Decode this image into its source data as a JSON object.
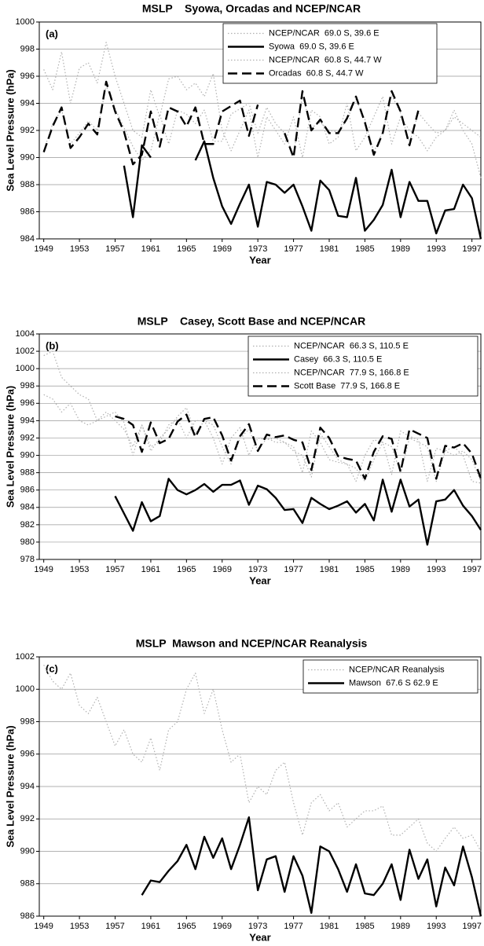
{
  "chart_data": [
    {
      "type": "line",
      "title": "MSLP    Syowa, Orcadas and NCEP/NCAR",
      "panel_label": "(a)",
      "x_label": "Year",
      "y_label": "Sea Level Pressure (hPa)",
      "x": [
        1949,
        1950,
        1951,
        1952,
        1953,
        1954,
        1955,
        1956,
        1957,
        1958,
        1959,
        1960,
        1961,
        1962,
        1963,
        1964,
        1965,
        1966,
        1967,
        1968,
        1969,
        1970,
        1971,
        1972,
        1973,
        1974,
        1975,
        1976,
        1977,
        1978,
        1979,
        1980,
        1981,
        1982,
        1983,
        1984,
        1985,
        1986,
        1987,
        1988,
        1989,
        1990,
        1991,
        1992,
        1993,
        1994,
        1995,
        1996,
        1997,
        1998
      ],
      "xlim": [
        1948.5,
        1998
      ],
      "xticks": [
        1949,
        1953,
        1957,
        1961,
        1965,
        1969,
        1973,
        1977,
        1981,
        1985,
        1989,
        1993,
        1997
      ],
      "ylim": [
        984,
        1000
      ],
      "yticks": [
        984,
        986,
        988,
        990,
        992,
        994,
        996,
        998,
        1000
      ],
      "grid": true,
      "series": [
        {
          "name": "NCEP/NCAR  69.0 S, 39.6 E",
          "color": "#b0b0b0",
          "style": "dotted",
          "values": [
            996.5,
            995,
            997.8,
            994,
            996.6,
            997,
            995.5,
            998.5,
            996,
            994,
            992,
            991.5,
            995,
            993,
            995.8,
            996,
            995,
            995.5,
            994.5,
            996.2,
            992,
            990.5,
            992,
            993.5,
            990,
            993,
            992,
            991,
            993,
            990,
            993.5,
            993,
            991,
            991.5,
            994,
            990.5,
            991.5,
            993,
            994.5,
            991,
            993,
            992,
            991.5,
            990.5,
            991.5,
            992,
            993.5,
            992,
            991,
            988.5
          ]
        },
        {
          "name": "Syowa  69.0 S, 39.6 E",
          "color": "#000000",
          "style": "solid",
          "values": [
            null,
            null,
            null,
            null,
            null,
            null,
            null,
            null,
            null,
            989.4,
            985.6,
            990.9,
            990.0,
            null,
            null,
            null,
            null,
            989.8,
            991.2,
            988.5,
            986.4,
            985.1,
            986.6,
            988.0,
            984.9,
            988.2,
            988.0,
            987.4,
            988.0,
            986.4,
            984.6,
            988.3,
            987.6,
            985.7,
            985.6,
            988.5,
            984.6,
            985.4,
            986.5,
            989.1,
            985.6,
            988.2,
            986.8,
            986.8,
            984.4,
            986.1,
            986.2,
            988.0,
            987.0,
            984.0
          ]
        },
        {
          "name": "NCEP/NCAR  60.8 S, 44.7 W",
          "color": "#b0b0b0",
          "style": "dotted",
          "values": [
            990.5,
            992.5,
            993.5,
            991,
            991.8,
            992.7,
            992,
            995.3,
            993.6,
            992.2,
            990.8,
            989.8,
            990.5,
            993.2,
            991,
            993.5,
            993.2,
            992.5,
            993.5,
            991.2,
            991.2,
            993.2,
            993.6,
            994,
            991.8,
            993.7,
            992.5,
            991.8,
            990.2,
            994.6,
            992.2,
            992.6,
            992,
            991.9,
            992.8,
            994.3,
            992.8,
            990.4,
            991.9,
            994.6,
            993.3,
            991.1,
            993.3,
            992.5,
            991.8,
            992,
            993,
            992.5,
            992,
            991.5
          ]
        },
        {
          "name": "Orcadas  60.8 S, 44.7 W",
          "color": "#000000",
          "style": "dashed",
          "values": [
            990.4,
            992.3,
            993.7,
            990.7,
            991.5,
            992.5,
            991.7,
            995.6,
            993.4,
            991.9,
            989.5,
            990.2,
            993.4,
            990.8,
            993.7,
            993.4,
            992.3,
            993.7,
            991.0,
            991.0,
            993.4,
            993.8,
            994.2,
            991.6,
            993.9,
            null,
            null,
            991.8,
            990.0,
            994.9,
            992.0,
            992.8,
            991.8,
            991.8,
            992.9,
            994.5,
            992.6,
            990.2,
            991.8,
            994.9,
            993.4,
            990.9,
            993.5,
            null,
            null,
            null,
            null,
            null,
            null,
            null
          ]
        }
      ]
    },
    {
      "type": "line",
      "title": "MSLP    Casey, Scott Base and NCEP/NCAR",
      "panel_label": "(b)",
      "x_label": "Year",
      "y_label": "Sea Level Pressure (hPa)",
      "x": [
        1949,
        1950,
        1951,
        1952,
        1953,
        1954,
        1955,
        1956,
        1957,
        1958,
        1959,
        1960,
        1961,
        1962,
        1963,
        1964,
        1965,
        1966,
        1967,
        1968,
        1969,
        1970,
        1971,
        1972,
        1973,
        1974,
        1975,
        1976,
        1977,
        1978,
        1979,
        1980,
        1981,
        1982,
        1983,
        1984,
        1985,
        1986,
        1987,
        1988,
        1989,
        1990,
        1991,
        1992,
        1993,
        1994,
        1995,
        1996,
        1997,
        1998
      ],
      "xlim": [
        1948.5,
        1998
      ],
      "xticks": [
        1949,
        1953,
        1957,
        1961,
        1965,
        1969,
        1973,
        1977,
        1981,
        1985,
        1989,
        1993,
        1997
      ],
      "ylim": [
        978,
        1004
      ],
      "yticks": [
        978,
        980,
        982,
        984,
        986,
        988,
        990,
        992,
        994,
        996,
        998,
        1000,
        1002,
        1004
      ],
      "grid": true,
      "series": [
        {
          "name": "NCEP/NCAR  66.3 S, 110.5 E",
          "color": "#b0b0b0",
          "style": "dotted",
          "values": [
            1001.5,
            1002,
            999,
            998,
            997,
            996.5,
            994,
            995,
            994,
            993,
            991,
            993.5,
            990.5,
            992,
            993,
            994.5,
            995.5,
            992.5,
            994,
            993.5,
            991,
            989,
            992,
            993,
            990.5,
            992,
            991.5,
            991.5,
            990.5,
            990,
            987.5,
            992.5,
            991,
            989.5,
            989,
            988.5,
            987,
            989.5,
            991.5,
            991,
            988,
            992,
            991.5,
            991,
            987,
            990.5,
            990,
            990.5,
            989.5,
            987
          ]
        },
        {
          "name": "Casey  66.3 S, 110.5 E",
          "color": "#000000",
          "style": "solid",
          "values": [
            null,
            null,
            null,
            null,
            null,
            null,
            null,
            null,
            985.3,
            983.3,
            981.3,
            984.6,
            982.4,
            983.0,
            987.3,
            986.0,
            985.5,
            986.0,
            986.7,
            985.8,
            986.6,
            986.6,
            987.1,
            984.3,
            986.5,
            986.1,
            985.1,
            983.7,
            983.8,
            982.2,
            985.1,
            984.4,
            983.8,
            984.2,
            984.7,
            983.4,
            984.4,
            982.5,
            987.2,
            983.5,
            987.2,
            984.1,
            984.9,
            979.7,
            984.7,
            984.9,
            986.0,
            984.2,
            983.0,
            981.4
          ]
        },
        {
          "name": "NCEP/NCAR  77.9 S, 166.8 E",
          "color": "#b0b0b0",
          "style": "dotted",
          "values": [
            997,
            996.5,
            995,
            996,
            994,
            993.5,
            994,
            994.5,
            995,
            993.8,
            990,
            993.5,
            991,
            991.5,
            993.5,
            994.2,
            992,
            994,
            994,
            992,
            989,
            992,
            993.2,
            990,
            992,
            991.8,
            992,
            991.5,
            991,
            988,
            992.8,
            991.5,
            989.5,
            989.2,
            989,
            987,
            990,
            991.8,
            991.5,
            987.8,
            992.8,
            992.2,
            991.8,
            987,
            990.8,
            990.5,
            991,
            990,
            987,
            986.8
          ]
        },
        {
          "name": "Scott Base  77.9 S, 166.8 E",
          "color": "#000000",
          "style": "dashed",
          "values": [
            null,
            null,
            null,
            null,
            null,
            null,
            null,
            null,
            994.5,
            994.2,
            993.5,
            990.4,
            993.8,
            991.4,
            991.9,
            993.9,
            994.7,
            992.1,
            994.2,
            994.4,
            992.3,
            989.4,
            992.2,
            993.6,
            990.5,
            992.4,
            992.1,
            992.3,
            991.8,
            991.5,
            988.3,
            993.2,
            992.0,
            989.9,
            989.6,
            989.4,
            987.3,
            990.4,
            992.2,
            991.9,
            988.1,
            993.0,
            992.5,
            992.0,
            987.3,
            991.1,
            990.9,
            991.4,
            990.2,
            987.3
          ]
        }
      ]
    },
    {
      "type": "line",
      "title": "MSLP  Mawson and NCEP/NCAR Reanalysis",
      "panel_label": "(c)",
      "x_label": "Year",
      "y_label": "Sea Level Pressure (hPa)",
      "x": [
        1949,
        1950,
        1951,
        1952,
        1953,
        1954,
        1955,
        1956,
        1957,
        1958,
        1959,
        1960,
        1961,
        1962,
        1963,
        1964,
        1965,
        1966,
        1967,
        1968,
        1969,
        1970,
        1971,
        1972,
        1973,
        1974,
        1975,
        1976,
        1977,
        1978,
        1979,
        1980,
        1981,
        1982,
        1983,
        1984,
        1985,
        1986,
        1987,
        1988,
        1989,
        1990,
        1991,
        1992,
        1993,
        1994,
        1995,
        1996,
        1997,
        1998
      ],
      "xlim": [
        1948.5,
        1998
      ],
      "xticks": [
        1949,
        1953,
        1957,
        1961,
        1965,
        1969,
        1973,
        1977,
        1981,
        1985,
        1989,
        1993,
        1997
      ],
      "ylim": [
        986,
        1002
      ],
      "yticks": [
        986,
        988,
        990,
        992,
        994,
        996,
        998,
        1000,
        1002
      ],
      "grid": true,
      "series": [
        {
          "name": "NCEP/NCAR Reanalysis",
          "color": "#b0b0b0",
          "style": "dotted",
          "values": [
            1001.5,
            1000.5,
            1000,
            1001,
            999,
            998.5,
            999.5,
            998,
            996.5,
            997.5,
            996,
            995.5,
            997,
            995,
            997.5,
            998,
            1000,
            1001,
            998.5,
            1000,
            997.5,
            995.5,
            996,
            993,
            994,
            993.5,
            995,
            995.5,
            993,
            991,
            993,
            993.5,
            992.5,
            993,
            991.5,
            992,
            992.5,
            992.5,
            992.8,
            991,
            991,
            991.5,
            992,
            990.5,
            990,
            990.8,
            991.5,
            990.8,
            991,
            990
          ]
        },
        {
          "name": "Mawson  67.6 S 62.9 E",
          "color": "#000000",
          "style": "solid",
          "values": [
            null,
            null,
            null,
            null,
            null,
            null,
            null,
            null,
            null,
            null,
            null,
            987.3,
            988.2,
            988.1,
            988.8,
            989.4,
            990.4,
            988.9,
            990.9,
            989.6,
            990.8,
            988.9,
            990.4,
            992.1,
            987.6,
            989.5,
            989.7,
            987.5,
            989.7,
            988.5,
            986.2,
            990.3,
            990.0,
            988.9,
            987.5,
            989.2,
            987.4,
            987.3,
            988.0,
            989.2,
            987.0,
            990.1,
            988.3,
            989.5,
            986.6,
            989.0,
            987.9,
            990.3,
            988.4,
            986.0
          ]
        }
      ]
    }
  ]
}
